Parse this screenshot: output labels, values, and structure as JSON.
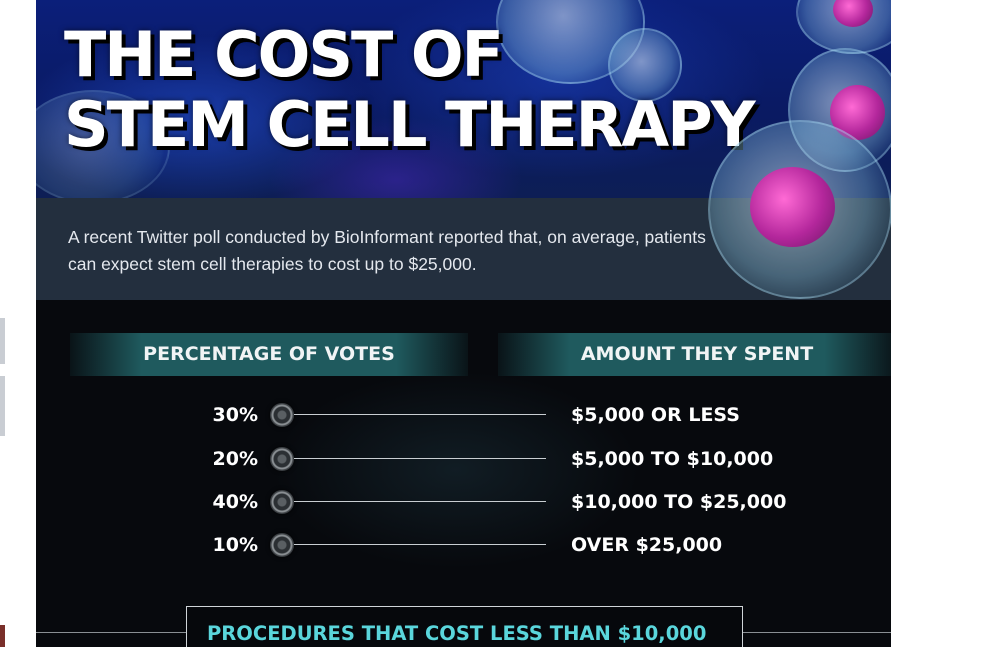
{
  "hero": {
    "title_line1": "THE COST OF",
    "title_line2": "STEM CELL THERAPY"
  },
  "intro": {
    "text": "A recent Twitter poll conducted by BioInformant reported that, on average, patients can expect stem cell therapies to cost up to $25,000."
  },
  "table": {
    "header_left": "PERCENTAGE OF VOTES",
    "header_right": "AMOUNT THEY SPENT",
    "rows": [
      {
        "percent": "30%",
        "amount": "$5,000 OR LESS"
      },
      {
        "percent": "20%",
        "amount": "$5,000 TO $10,000"
      },
      {
        "percent": "40%",
        "amount": "$10,000 TO $25,000"
      },
      {
        "percent": "10%",
        "amount": "OVER $25,000"
      }
    ]
  },
  "section_next": {
    "title": "PROCEDURES THAT COST LESS THAN $10,000"
  },
  "colors": {
    "header_bar": "#1f5a5e",
    "intro_band": "#232f3e",
    "accent_text": "#5ad6dc"
  }
}
